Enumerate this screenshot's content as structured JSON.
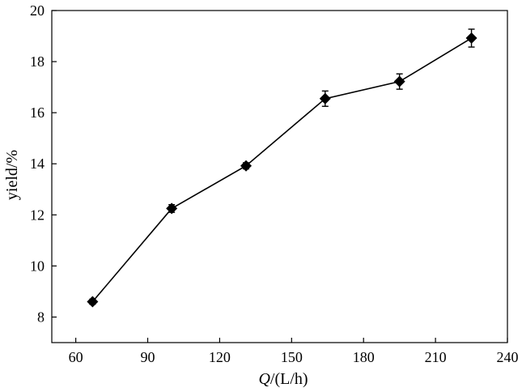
{
  "chart_data": {
    "type": "line",
    "xlabel_italic": "Q",
    "xlabel_rest": "/(L/h)",
    "ylabel": "yield/%",
    "xlim": [
      50,
      240
    ],
    "ylim": [
      7,
      20
    ],
    "xticks": [
      60,
      90,
      120,
      150,
      180,
      210,
      240
    ],
    "yticks": [
      8,
      10,
      12,
      14,
      16,
      18,
      20
    ],
    "grid": false,
    "series": [
      {
        "marker": "diamond",
        "color": "#000000",
        "x": [
          67,
          100,
          131,
          164,
          195,
          225
        ],
        "y": [
          8.6,
          12.25,
          13.92,
          16.55,
          17.22,
          18.92
        ],
        "yerr": [
          0.1,
          0.15,
          0.12,
          0.3,
          0.3,
          0.35
        ]
      }
    ]
  }
}
